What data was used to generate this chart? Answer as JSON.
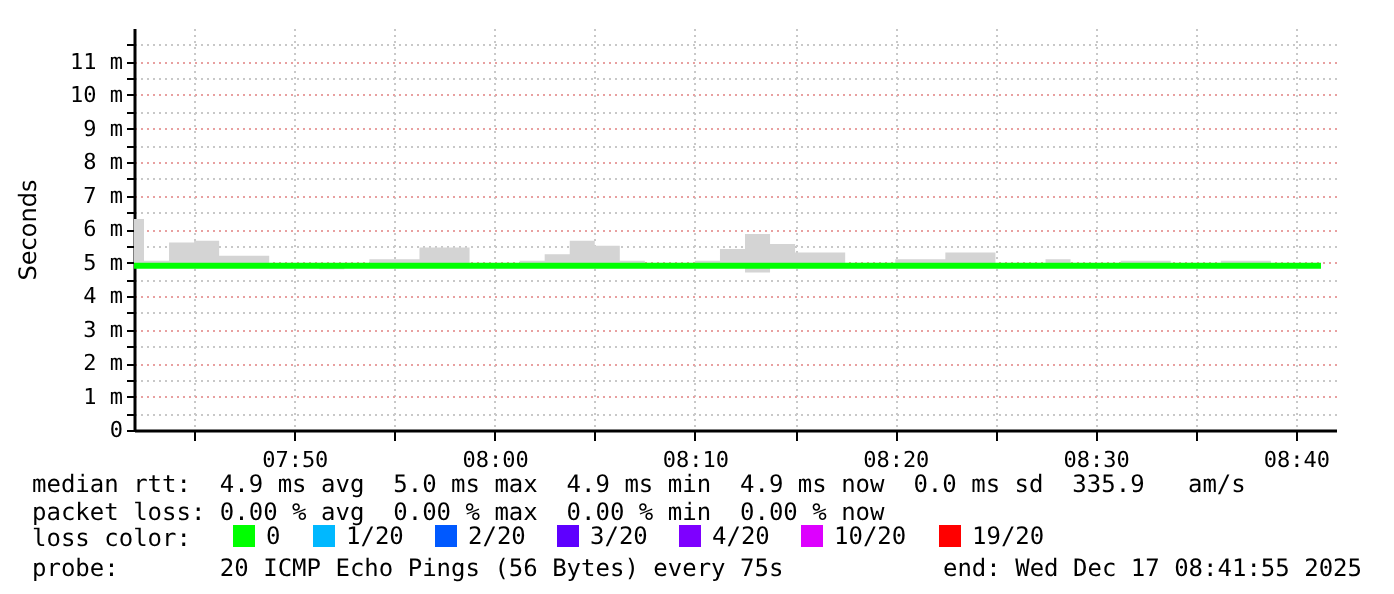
{
  "chart_data": {
    "type": "step",
    "ylabel": "Seconds",
    "legend_title": "loss color:",
    "legend": "bottom",
    "grid": true,
    "marker": "none",
    "xlim": [
      "2025-12-17T07:42",
      "2025-12-17T08:42"
    ],
    "xticks": [
      {
        "value": "2025-12-17T07:45",
        "label": null
      },
      {
        "value": "2025-12-17T07:50",
        "label": "07:50"
      },
      {
        "value": "2025-12-17T07:55",
        "label": null
      },
      {
        "value": "2025-12-17T08:00",
        "label": "08:00"
      },
      {
        "value": "2025-12-17T08:05",
        "label": null
      },
      {
        "value": "2025-12-17T08:10",
        "label": "08:10"
      },
      {
        "value": "2025-12-17T08:15",
        "label": null
      },
      {
        "value": "2025-12-17T08:20",
        "label": "08:20"
      },
      {
        "value": "2025-12-17T08:25",
        "label": null
      },
      {
        "value": "2025-12-17T08:30",
        "label": "08:30"
      },
      {
        "value": "2025-12-17T08:35",
        "label": null
      },
      {
        "value": "2025-12-17T08:40",
        "label": "08:40"
      }
    ],
    "ylim": [
      0,
      12
    ],
    "yticks": [
      0,
      {
        "value": 0.5,
        "label": null
      },
      {
        "value": 1,
        "label": "1 m"
      },
      {
        "value": 1.5,
        "label": null
      },
      {
        "value": 2,
        "label": "2 m"
      },
      {
        "value": 2.5,
        "label": null
      },
      {
        "value": 3,
        "label": "3 m"
      },
      {
        "value": 3.5,
        "label": null
      },
      {
        "value": 4,
        "label": "4 m"
      },
      {
        "value": 4.5,
        "label": null
      },
      {
        "value": 5,
        "label": "5 m"
      },
      {
        "value": 5.5,
        "label": null
      },
      {
        "value": 6,
        "label": "6 m"
      },
      {
        "value": 6.5,
        "label": null
      },
      {
        "value": 7,
        "label": "7 m"
      },
      {
        "value": 7.5,
        "label": null
      },
      {
        "value": 8,
        "label": "8 m"
      },
      {
        "value": 8.5,
        "label": null
      },
      {
        "value": 9,
        "label": "9 m"
      },
      {
        "value": 9.5,
        "label": null
      },
      {
        "value": 10,
        "label": "10 m"
      },
      {
        "value": 10.5,
        "label": null
      },
      {
        "value": 11,
        "label": "11 m"
      },
      {
        "value": 11.5,
        "label": null
      }
    ],
    "x": [
      "2025-12-17T07:42:00",
      "2025-12-17T07:42:30",
      "2025-12-17T07:43:45",
      "2025-12-17T07:45:00",
      "2025-12-17T07:46:15",
      "2025-12-17T07:47:30",
      "2025-12-17T07:48:45",
      "2025-12-17T07:50:00",
      "2025-12-17T07:51:15",
      "2025-12-17T07:52:30",
      "2025-12-17T07:53:45",
      "2025-12-17T07:55:00",
      "2025-12-17T07:56:15",
      "2025-12-17T07:57:30",
      "2025-12-17T07:58:45",
      "2025-12-17T08:00:00",
      "2025-12-17T08:01:15",
      "2025-12-17T08:02:30",
      "2025-12-17T08:03:45",
      "2025-12-17T08:05:00",
      "2025-12-17T08:06:15",
      "2025-12-17T08:07:30",
      "2025-12-17T08:08:45",
      "2025-12-17T08:10:00",
      "2025-12-17T08:11:15",
      "2025-12-17T08:12:30",
      "2025-12-17T08:13:45",
      "2025-12-17T08:15:00",
      "2025-12-17T08:16:15",
      "2025-12-17T08:17:30",
      "2025-12-17T08:18:45",
      "2025-12-17T08:20:00",
      "2025-12-17T08:21:15",
      "2025-12-17T08:22:30",
      "2025-12-17T08:23:45",
      "2025-12-17T08:25:00",
      "2025-12-17T08:26:15",
      "2025-12-17T08:27:30",
      "2025-12-17T08:28:45",
      "2025-12-17T08:30:00",
      "2025-12-17T08:31:15",
      "2025-12-17T08:32:30",
      "2025-12-17T08:33:45",
      "2025-12-17T08:35:00",
      "2025-12-17T08:36:15",
      "2025-12-17T08:37:30",
      "2025-12-17T08:38:45",
      "2025-12-17T08:40:00",
      "2025-12-17T08:41:15"
    ],
    "series": [
      {
        "name": "0",
        "color": "#00ff00",
        "values": [
          4.9,
          4.9,
          4.9,
          4.9,
          4.9,
          4.9,
          4.9,
          4.9,
          4.9,
          4.9,
          4.9,
          4.9,
          4.9,
          4.9,
          4.9,
          4.9,
          4.9,
          4.9,
          4.9,
          4.9,
          4.9,
          4.9,
          4.9,
          4.9,
          4.9,
          4.9,
          4.9,
          4.9,
          4.9,
          4.9,
          4.9,
          4.9,
          4.9,
          4.9,
          4.9,
          4.9,
          4.9,
          4.9,
          4.9,
          4.9,
          4.9,
          4.9,
          4.9,
          4.9,
          4.9,
          4.9,
          4.9,
          4.9,
          4.9
        ],
        "lower": [
          4.9,
          4.9,
          4.9,
          4.9,
          4.9,
          4.9,
          4.9,
          4.9,
          4.8,
          4.9,
          4.9,
          4.9,
          4.9,
          4.9,
          4.9,
          4.9,
          4.9,
          4.9,
          4.9,
          4.9,
          4.9,
          4.9,
          4.9,
          4.9,
          4.9,
          4.7,
          4.9,
          4.9,
          4.9,
          4.9,
          4.9,
          4.9,
          4.9,
          4.9,
          4.9,
          4.9,
          4.9,
          4.9,
          4.9,
          4.9,
          4.9,
          4.9,
          4.9,
          4.9,
          4.9,
          4.9,
          4.9,
          4.9,
          4.9
        ],
        "upper": [
          6.3,
          5.05,
          5.6,
          5.65,
          5.2,
          5.2,
          4.9,
          4.9,
          4.9,
          4.9,
          5.1,
          5.1,
          5.45,
          5.45,
          4.9,
          4.9,
          5.05,
          5.25,
          5.65,
          5.5,
          5.05,
          4.9,
          4.9,
          5.05,
          5.4,
          5.85,
          5.55,
          5.3,
          5.3,
          4.9,
          4.9,
          5.1,
          5.1,
          5.3,
          5.3,
          4.9,
          4.9,
          5.1,
          4.9,
          4.9,
          5.05,
          5.05,
          4.9,
          4.9,
          5.05,
          5.05,
          4.9,
          4.9,
          4.9
        ]
      },
      {
        "name": "1/20",
        "color": "#00b8ff",
        "values": [
          null,
          null,
          null,
          null,
          null,
          null,
          null,
          null,
          null,
          null,
          null,
          null,
          null,
          null,
          null,
          null,
          null,
          null,
          null,
          null,
          null,
          null,
          null,
          null,
          null,
          null,
          null,
          null,
          null,
          null,
          null,
          null,
          null,
          null,
          null,
          null,
          null,
          null,
          null,
          null,
          null,
          null,
          null,
          null,
          null,
          null,
          null,
          null,
          null
        ]
      },
      {
        "name": "2/20",
        "color": "#0059ff",
        "values": [
          null,
          null,
          null,
          null,
          null,
          null,
          null,
          null,
          null,
          null,
          null,
          null,
          null,
          null,
          null,
          null,
          null,
          null,
          null,
          null,
          null,
          null,
          null,
          null,
          null,
          null,
          null,
          null,
          null,
          null,
          null,
          null,
          null,
          null,
          null,
          null,
          null,
          null,
          null,
          null,
          null,
          null,
          null,
          null,
          null,
          null,
          null,
          null,
          null
        ]
      },
      {
        "name": "3/20",
        "color": "#5e00ff",
        "values": [
          null,
          null,
          null,
          null,
          null,
          null,
          null,
          null,
          null,
          null,
          null,
          null,
          null,
          null,
          null,
          null,
          null,
          null,
          null,
          null,
          null,
          null,
          null,
          null,
          null,
          null,
          null,
          null,
          null,
          null,
          null,
          null,
          null,
          null,
          null,
          null,
          null,
          null,
          null,
          null,
          null,
          null,
          null,
          null,
          null,
          null,
          null,
          null,
          null
        ]
      },
      {
        "name": "4/20",
        "color": "#7e00ff",
        "values": [
          null,
          null,
          null,
          null,
          null,
          null,
          null,
          null,
          null,
          null,
          null,
          null,
          null,
          null,
          null,
          null,
          null,
          null,
          null,
          null,
          null,
          null,
          null,
          null,
          null,
          null,
          null,
          null,
          null,
          null,
          null,
          null,
          null,
          null,
          null,
          null,
          null,
          null,
          null,
          null,
          null,
          null,
          null,
          null,
          null,
          null,
          null,
          null,
          null
        ]
      },
      {
        "name": "10/20",
        "color": "#dd00ff",
        "values": [
          null,
          null,
          null,
          null,
          null,
          null,
          null,
          null,
          null,
          null,
          null,
          null,
          null,
          null,
          null,
          null,
          null,
          null,
          null,
          null,
          null,
          null,
          null,
          null,
          null,
          null,
          null,
          null,
          null,
          null,
          null,
          null,
          null,
          null,
          null,
          null,
          null,
          null,
          null,
          null,
          null,
          null,
          null,
          null,
          null,
          null,
          null,
          null,
          null
        ]
      },
      {
        "name": "19/20",
        "color": "#ff0000",
        "values": [
          null,
          null,
          null,
          null,
          null,
          null,
          null,
          null,
          null,
          null,
          null,
          null,
          null,
          null,
          null,
          null,
          null,
          null,
          null,
          null,
          null,
          null,
          null,
          null,
          null,
          null,
          null,
          null,
          null,
          null,
          null,
          null,
          null,
          null,
          null,
          null,
          null,
          null,
          null,
          null,
          null,
          null,
          null,
          null,
          null,
          null,
          null,
          null,
          null
        ]
      }
    ],
    "annotations": [
      "median rtt:  4.9 ms avg  5.0 ms max  4.9 ms min  4.9 ms now  0.0 ms sd  335.9   am/s",
      "packet loss: 0.00 % avg  0.00 % max  0.00 % min  0.00 % now",
      "probe:       20 ICMP Echo Pings (56 Bytes) every 75s",
      "end: Wed Dec 17 08:41:55 2025"
    ]
  }
}
